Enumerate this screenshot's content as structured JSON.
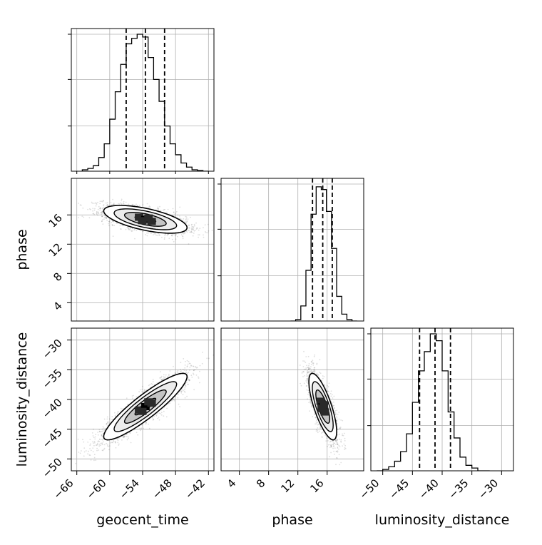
{
  "chart_data": {
    "type": "corner",
    "parameters": [
      "geocent_time",
      "phase",
      "luminosity_distance"
    ],
    "axis_labels": {
      "x": [
        "geocent_time",
        "phase",
        "luminosity_distance"
      ],
      "y": [
        "phase",
        "luminosity_distance"
      ]
    },
    "ranges": {
      "geocent_time": [
        -67,
        -41
      ],
      "phase": [
        1.5,
        21.0
      ],
      "luminosity_distance": [
        -52,
        -28
      ]
    },
    "ticks": {
      "geocent_time": [
        -66,
        -60,
        -54,
        -48,
        -42
      ],
      "phase": [
        4,
        8,
        12,
        16
      ],
      "luminosity_distance": [
        -50,
        -45,
        -40,
        -35,
        -30
      ]
    },
    "tick_labels": {
      "geocent_time": [
        "−66",
        "−60",
        "−54",
        "−48",
        "−42"
      ],
      "phase": [
        "4",
        "8",
        "12",
        "16"
      ],
      "luminosity_distance": [
        "−50",
        "−45",
        "−40",
        "−35",
        "−30"
      ]
    },
    "grid": true,
    "quantile_lines": {
      "geocent_time": [
        -57.0,
        -53.5,
        -50.0
      ],
      "phase": [
        14.0,
        15.4,
        16.7
      ],
      "luminosity_distance": [
        -43.8,
        -41.2,
        -38.6
      ]
    },
    "histograms": {
      "geocent_time": {
        "bin_edges": [
          -65,
          -64,
          -63,
          -62,
          -61,
          -60,
          -59,
          -58,
          -57,
          -56,
          -55,
          -54,
          -53,
          -52,
          -51,
          -50,
          -49,
          -48,
          -47,
          -46,
          -45,
          -44,
          -43,
          -42
        ],
        "counts": [
          0.01,
          0.02,
          0.04,
          0.1,
          0.2,
          0.38,
          0.58,
          0.78,
          0.93,
          0.97,
          1.0,
          0.98,
          0.83,
          0.67,
          0.51,
          0.33,
          0.2,
          0.12,
          0.06,
          0.03,
          0.01,
          0.005,
          0.0
        ]
      },
      "phase": {
        "bin_edges": [
          11.0,
          11.7,
          12.4,
          13.1,
          13.8,
          14.5,
          15.2,
          15.9,
          16.6,
          17.3,
          18.0,
          18.7,
          19.4,
          20.1
        ],
        "counts": [
          0.0,
          0.01,
          0.11,
          0.37,
          0.78,
          0.98,
          0.96,
          0.8,
          0.53,
          0.18,
          0.05,
          0.01,
          0.0
        ]
      },
      "luminosity_distance": {
        "bin_edges": [
          -51,
          -50,
          -49,
          -48,
          -47,
          -46,
          -45,
          -44,
          -43,
          -42,
          -41,
          -40,
          -39,
          -38,
          -37,
          -36,
          -35,
          -34,
          -33,
          -32
        ],
        "counts": [
          0.0,
          0.01,
          0.03,
          0.07,
          0.14,
          0.27,
          0.5,
          0.73,
          0.87,
          1.0,
          0.95,
          0.73,
          0.43,
          0.24,
          0.1,
          0.04,
          0.02,
          0.0,
          0.0
        ]
      }
    },
    "correlations": {
      "geocent_time__phase": {
        "mean": [
          -53.5,
          15.4
        ],
        "sd": [
          3.8,
          0.95
        ],
        "rho": -0.6
      },
      "geocent_time__luminosity_distance": {
        "mean": [
          -53.5,
          -41.2
        ],
        "sd": [
          3.8,
          2.8
        ],
        "rho": 0.9
      },
      "phase__luminosity_distance": {
        "mean": [
          15.4,
          -41.2
        ],
        "sd": [
          0.95,
          2.8
        ],
        "rho": -0.75
      }
    },
    "contour_levels_sigma": [
      0.5,
      1.0,
      1.5,
      2.0
    ]
  }
}
